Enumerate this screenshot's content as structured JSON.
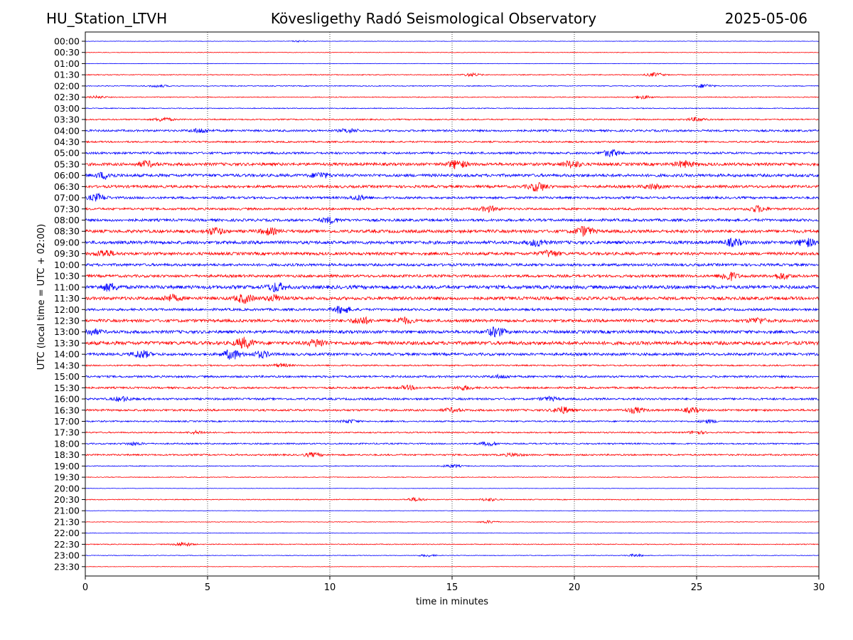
{
  "header": {
    "station": "HU_Station_LTVH",
    "title": "Kövesligethy Radó Seismological Observatory",
    "date": "2025-05-06"
  },
  "chart_data": {
    "type": "line",
    "chart_kind": "helicorder",
    "xlabel": "time in minutes",
    "ylabel": "UTC (local time = UTC + 02:00)",
    "xlim": [
      0,
      30
    ],
    "x_ticks": [
      0,
      5,
      10,
      15,
      20,
      25,
      30
    ],
    "grid": "vertical dotted lines at 5-minute ticks",
    "colors": [
      "#0000ff",
      "#ff0000"
    ],
    "row_labels": [
      "00:00",
      "00:30",
      "01:00",
      "01:30",
      "02:00",
      "02:30",
      "03:00",
      "03:30",
      "04:00",
      "04:30",
      "05:00",
      "05:30",
      "06:00",
      "06:30",
      "07:00",
      "07:30",
      "08:00",
      "08:30",
      "09:00",
      "09:30",
      "10:00",
      "10:30",
      "11:00",
      "11:30",
      "12:00",
      "12:30",
      "13:00",
      "13:30",
      "14:00",
      "14:30",
      "15:00",
      "15:30",
      "16:00",
      "16:30",
      "17:00",
      "17:30",
      "18:00",
      "18:30",
      "19:00",
      "19:30",
      "20:00",
      "20:30",
      "21:00",
      "21:30",
      "22:00",
      "22:30",
      "23:00",
      "23:30"
    ],
    "noise_level": [
      0.3,
      0.4,
      0.3,
      0.6,
      0.6,
      0.6,
      0.6,
      0.9,
      1.4,
      1.1,
      1.5,
      2.0,
      2.0,
      1.8,
      1.6,
      1.5,
      1.8,
      2.1,
      2.2,
      2.0,
      1.8,
      1.8,
      2.4,
      2.2,
      1.6,
      2.0,
      2.1,
      2.4,
      1.8,
      1.0,
      1.4,
      1.3,
      1.4,
      1.4,
      1.0,
      0.9,
      1.0,
      1.1,
      0.6,
      0.5,
      0.3,
      0.6,
      0.3,
      0.4,
      0.3,
      0.6,
      0.4,
      0.3
    ],
    "bursts": [
      {
        "row": 0,
        "minute": 8.8,
        "amplitude": 1.0
      },
      {
        "row": 3,
        "minute": 15.8,
        "amplitude": 2.0
      },
      {
        "row": 3,
        "minute": 23.3,
        "amplitude": 2.6
      },
      {
        "row": 4,
        "minute": 3.0,
        "amplitude": 1.6
      },
      {
        "row": 4,
        "minute": 25.3,
        "amplitude": 2.6
      },
      {
        "row": 5,
        "minute": 0.5,
        "amplitude": 1.5
      },
      {
        "row": 5,
        "minute": 22.8,
        "amplitude": 2.2
      },
      {
        "row": 7,
        "minute": 3.2,
        "amplitude": 2.6
      },
      {
        "row": 7,
        "minute": 25.0,
        "amplitude": 2.4
      },
      {
        "row": 8,
        "minute": 4.7,
        "amplitude": 3.0
      },
      {
        "row": 8,
        "minute": 10.8,
        "amplitude": 2.6
      },
      {
        "row": 10,
        "minute": 21.5,
        "amplitude": 4.5
      },
      {
        "row": 11,
        "minute": 2.5,
        "amplitude": 3.5
      },
      {
        "row": 11,
        "minute": 15.2,
        "amplitude": 5.5
      },
      {
        "row": 11,
        "minute": 19.9,
        "amplitude": 4.5
      },
      {
        "row": 11,
        "minute": 24.5,
        "amplitude": 4.0
      },
      {
        "row": 12,
        "minute": 0.8,
        "amplitude": 4.0
      },
      {
        "row": 12,
        "minute": 9.6,
        "amplitude": 3.5
      },
      {
        "row": 13,
        "minute": 18.5,
        "amplitude": 6.0
      },
      {
        "row": 13,
        "minute": 23.2,
        "amplitude": 3.0
      },
      {
        "row": 14,
        "minute": 0.5,
        "amplitude": 4.5
      },
      {
        "row": 14,
        "minute": 11.2,
        "amplitude": 3.0
      },
      {
        "row": 15,
        "minute": 16.5,
        "amplitude": 3.5
      },
      {
        "row": 15,
        "minute": 27.5,
        "amplitude": 4.0
      },
      {
        "row": 16,
        "minute": 10.0,
        "amplitude": 3.5
      },
      {
        "row": 17,
        "minute": 5.3,
        "amplitude": 4.5
      },
      {
        "row": 17,
        "minute": 7.5,
        "amplitude": 4.0
      },
      {
        "row": 17,
        "minute": 20.4,
        "amplitude": 6.0
      },
      {
        "row": 18,
        "minute": 18.5,
        "amplitude": 4.5
      },
      {
        "row": 18,
        "minute": 26.5,
        "amplitude": 4.5
      },
      {
        "row": 18,
        "minute": 29.5,
        "amplitude": 5.0
      },
      {
        "row": 19,
        "minute": 0.8,
        "amplitude": 4.5
      },
      {
        "row": 19,
        "minute": 19.0,
        "amplitude": 4.0
      },
      {
        "row": 21,
        "minute": 26.3,
        "amplitude": 6.0
      },
      {
        "row": 21,
        "minute": 28.5,
        "amplitude": 4.0
      },
      {
        "row": 22,
        "minute": 1.0,
        "amplitude": 4.5
      },
      {
        "row": 22,
        "minute": 7.8,
        "amplitude": 5.5
      },
      {
        "row": 23,
        "minute": 3.5,
        "amplitude": 4.0
      },
      {
        "row": 23,
        "minute": 6.5,
        "amplitude": 5.5
      },
      {
        "row": 23,
        "minute": 7.8,
        "amplitude": 4.0
      },
      {
        "row": 24,
        "minute": 10.5,
        "amplitude": 5.0
      },
      {
        "row": 25,
        "minute": 11.3,
        "amplitude": 4.5
      },
      {
        "row": 25,
        "minute": 13.0,
        "amplitude": 4.0
      },
      {
        "row": 25,
        "minute": 27.5,
        "amplitude": 3.5
      },
      {
        "row": 26,
        "minute": 0.3,
        "amplitude": 3.5
      },
      {
        "row": 26,
        "minute": 16.8,
        "amplitude": 6.0
      },
      {
        "row": 27,
        "minute": 6.5,
        "amplitude": 6.5
      },
      {
        "row": 27,
        "minute": 9.5,
        "amplitude": 4.5
      },
      {
        "row": 28,
        "minute": 2.3,
        "amplitude": 5.0
      },
      {
        "row": 28,
        "minute": 6.0,
        "amplitude": 6.5
      },
      {
        "row": 28,
        "minute": 7.2,
        "amplitude": 4.0
      },
      {
        "row": 29,
        "minute": 8.0,
        "amplitude": 2.0
      },
      {
        "row": 30,
        "minute": 17.0,
        "amplitude": 2.0
      },
      {
        "row": 31,
        "minute": 13.2,
        "amplitude": 2.5
      },
      {
        "row": 31,
        "minute": 15.5,
        "amplitude": 2.5
      },
      {
        "row": 32,
        "minute": 1.5,
        "amplitude": 3.0
      },
      {
        "row": 32,
        "minute": 19.0,
        "amplitude": 2.5
      },
      {
        "row": 33,
        "minute": 15.0,
        "amplitude": 2.5
      },
      {
        "row": 33,
        "minute": 19.5,
        "amplitude": 4.5
      },
      {
        "row": 33,
        "minute": 22.5,
        "amplitude": 3.5
      },
      {
        "row": 33,
        "minute": 24.8,
        "amplitude": 3.0
      },
      {
        "row": 34,
        "minute": 10.8,
        "amplitude": 2.0
      },
      {
        "row": 34,
        "minute": 25.5,
        "amplitude": 2.0
      },
      {
        "row": 35,
        "minute": 4.6,
        "amplitude": 2.0
      },
      {
        "row": 35,
        "minute": 25.0,
        "amplitude": 2.0
      },
      {
        "row": 36,
        "minute": 2.0,
        "amplitude": 1.8
      },
      {
        "row": 36,
        "minute": 16.5,
        "amplitude": 2.5
      },
      {
        "row": 37,
        "minute": 9.3,
        "amplitude": 2.5
      },
      {
        "row": 37,
        "minute": 17.5,
        "amplitude": 2.0
      },
      {
        "row": 38,
        "minute": 15.0,
        "amplitude": 2.0
      },
      {
        "row": 41,
        "minute": 13.5,
        "amplitude": 2.5
      },
      {
        "row": 41,
        "minute": 16.5,
        "amplitude": 2.0
      },
      {
        "row": 43,
        "minute": 16.5,
        "amplitude": 1.8
      },
      {
        "row": 45,
        "minute": 4.0,
        "amplitude": 3.0
      },
      {
        "row": 46,
        "minute": 14.0,
        "amplitude": 1.5
      },
      {
        "row": 46,
        "minute": 22.5,
        "amplitude": 1.8
      }
    ]
  }
}
